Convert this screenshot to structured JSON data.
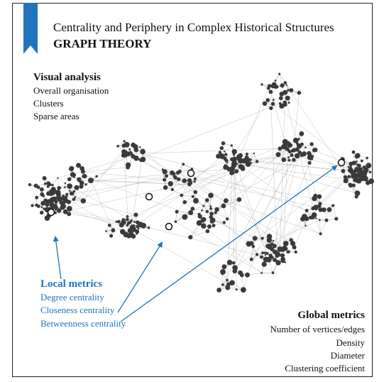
{
  "header": {
    "subtitle": "Centrality and Periphery in Complex Historical Structures",
    "title": "GRAPH THEORY"
  },
  "visual_analysis": {
    "heading": "Visual analysis",
    "items": [
      "Overall organisation",
      "Clusters",
      "Sparse areas"
    ]
  },
  "local_metrics": {
    "heading": "Local metrics",
    "items": [
      "Degree centrality",
      "Closeness centrality",
      "Betweenness centrality"
    ]
  },
  "global_metrics": {
    "heading": "Global metrics",
    "items": [
      "Number of vertices/edges",
      "Density",
      "Diameter",
      "Clustering coefficient"
    ]
  }
}
